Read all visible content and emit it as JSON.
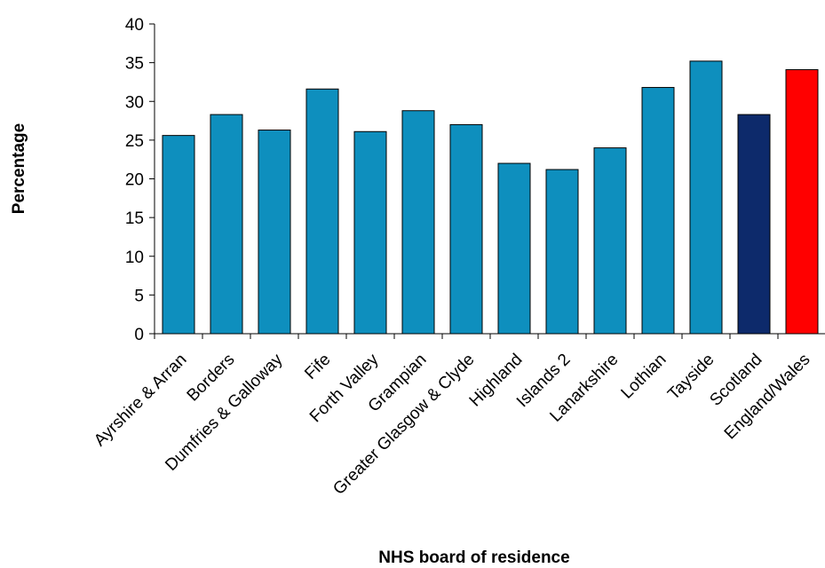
{
  "chart_data": {
    "type": "bar",
    "title": "",
    "xlabel": "NHS board of residence",
    "ylabel": "Percentage",
    "ylim": [
      0,
      40
    ],
    "yticks": [
      0,
      5,
      10,
      15,
      20,
      25,
      30,
      35,
      40
    ],
    "grid": false,
    "categories": [
      "Ayrshire & Arran",
      "Borders",
      "Dumfries & Galloway",
      "Fife",
      "Forth Valley",
      "Grampian",
      "Greater Glasgow & Clyde",
      "Highland",
      "Islands 2",
      "Lanarkshire",
      "Lothian",
      "Tayside",
      "Scotland",
      "England/Wales"
    ],
    "values": [
      25.6,
      28.3,
      26.3,
      31.6,
      26.1,
      28.8,
      27.0,
      22.0,
      21.2,
      24.0,
      31.8,
      35.2,
      28.3,
      34.1
    ],
    "colors": [
      "#0e8fbe",
      "#0e8fbe",
      "#0e8fbe",
      "#0e8fbe",
      "#0e8fbe",
      "#0e8fbe",
      "#0e8fbe",
      "#0e8fbe",
      "#0e8fbe",
      "#0e8fbe",
      "#0e8fbe",
      "#0e8fbe",
      "#0d2a6b",
      "#ff0000"
    ]
  }
}
